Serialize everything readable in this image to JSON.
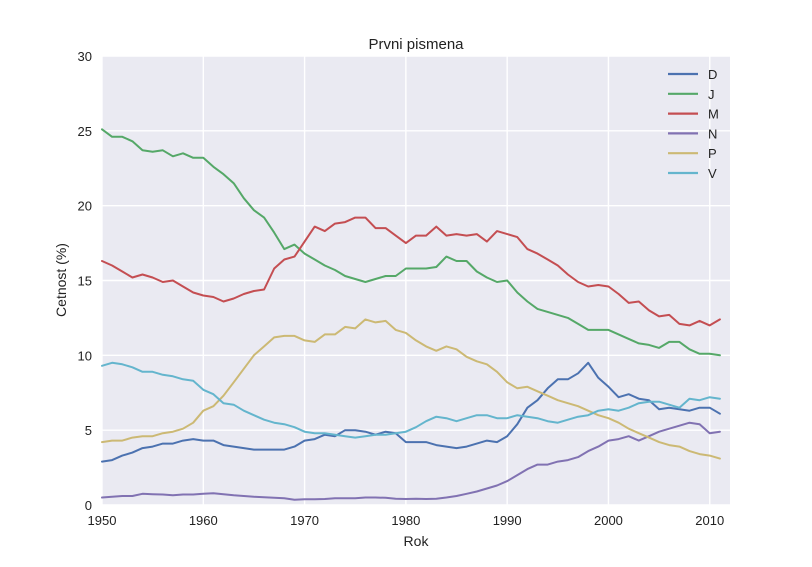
{
  "chart_data": {
    "type": "line",
    "title": "Prvni pismena",
    "xlabel": "Rok",
    "ylabel": "Cetnost (%)",
    "xlim": [
      1950,
      2012
    ],
    "ylim": [
      0,
      30
    ],
    "xticks": [
      1950,
      1960,
      1970,
      1980,
      1990,
      2000,
      2010
    ],
    "yticks": [
      0,
      5,
      10,
      15,
      20,
      25,
      30
    ],
    "grid": true,
    "legend_position": "top-right",
    "x": [
      1950,
      1951,
      1952,
      1953,
      1954,
      1955,
      1956,
      1957,
      1958,
      1959,
      1960,
      1961,
      1962,
      1963,
      1964,
      1965,
      1966,
      1967,
      1968,
      1969,
      1970,
      1971,
      1972,
      1973,
      1974,
      1975,
      1976,
      1977,
      1978,
      1979,
      1980,
      1981,
      1982,
      1983,
      1984,
      1985,
      1986,
      1987,
      1988,
      1989,
      1990,
      1991,
      1992,
      1993,
      1994,
      1995,
      1996,
      1997,
      1998,
      1999,
      2000,
      2001,
      2002,
      2003,
      2004,
      2005,
      2006,
      2007,
      2008,
      2009,
      2010,
      2011
    ],
    "series": [
      {
        "name": "D",
        "color": "#4c72b0",
        "values": [
          2.9,
          3.0,
          3.3,
          3.5,
          3.8,
          3.9,
          4.1,
          4.1,
          4.3,
          4.4,
          4.3,
          4.3,
          4.0,
          3.9,
          3.8,
          3.7,
          3.7,
          3.7,
          3.7,
          3.9,
          4.3,
          4.4,
          4.7,
          4.6,
          5.0,
          5.0,
          4.9,
          4.7,
          4.9,
          4.8,
          4.2,
          4.2,
          4.2,
          4.0,
          3.9,
          3.8,
          3.9,
          4.1,
          4.3,
          4.2,
          4.6,
          5.4,
          6.5,
          7.0,
          7.8,
          8.4,
          8.4,
          8.8,
          9.5,
          8.5,
          7.9,
          7.2,
          7.4,
          7.1,
          7.0,
          6.4,
          6.5,
          6.4,
          6.3,
          6.5,
          6.5,
          6.1
        ]
      },
      {
        "name": "J",
        "color": "#55a868",
        "values": [
          25.1,
          24.6,
          24.6,
          24.3,
          23.7,
          23.6,
          23.7,
          23.3,
          23.5,
          23.2,
          23.2,
          22.6,
          22.1,
          21.5,
          20.5,
          19.7,
          19.2,
          18.2,
          17.1,
          17.4,
          16.8,
          16.4,
          16.0,
          15.7,
          15.3,
          15.1,
          14.9,
          15.1,
          15.3,
          15.3,
          15.8,
          15.8,
          15.8,
          15.9,
          16.6,
          16.3,
          16.3,
          15.6,
          15.2,
          14.9,
          15.0,
          14.2,
          13.6,
          13.1,
          12.9,
          12.7,
          12.5,
          12.1,
          11.7,
          11.7,
          11.7,
          11.4,
          11.1,
          10.8,
          10.7,
          10.5,
          10.9,
          10.9,
          10.4,
          10.1,
          10.1,
          10.0
        ]
      },
      {
        "name": "M",
        "color": "#c44e52",
        "values": [
          16.3,
          16.0,
          15.6,
          15.2,
          15.4,
          15.2,
          14.9,
          15.0,
          14.6,
          14.2,
          14.0,
          13.9,
          13.6,
          13.8,
          14.1,
          14.3,
          14.4,
          15.8,
          16.4,
          16.6,
          17.6,
          18.6,
          18.3,
          18.8,
          18.9,
          19.2,
          19.2,
          18.5,
          18.5,
          18.0,
          17.5,
          18.0,
          18.0,
          18.6,
          18.0,
          18.1,
          18.0,
          18.1,
          17.6,
          18.3,
          18.1,
          17.9,
          17.1,
          16.8,
          16.4,
          16.0,
          15.4,
          14.9,
          14.6,
          14.7,
          14.6,
          14.1,
          13.5,
          13.6,
          13.0,
          12.6,
          12.7,
          12.1,
          12.0,
          12.3,
          12.0,
          12.4
        ]
      },
      {
        "name": "N",
        "color": "#8172b2",
        "values": [
          0.5,
          0.55,
          0.6,
          0.6,
          0.75,
          0.72,
          0.7,
          0.65,
          0.7,
          0.7,
          0.75,
          0.78,
          0.72,
          0.65,
          0.6,
          0.55,
          0.52,
          0.48,
          0.45,
          0.35,
          0.38,
          0.38,
          0.4,
          0.45,
          0.45,
          0.45,
          0.5,
          0.5,
          0.48,
          0.42,
          0.4,
          0.42,
          0.4,
          0.42,
          0.5,
          0.6,
          0.75,
          0.9,
          1.1,
          1.3,
          1.6,
          2.0,
          2.4,
          2.7,
          2.7,
          2.9,
          3.0,
          3.2,
          3.6,
          3.9,
          4.3,
          4.4,
          4.6,
          4.3,
          4.6,
          4.9,
          5.1,
          5.3,
          5.5,
          5.4,
          4.8,
          4.9
        ]
      },
      {
        "name": "P",
        "color": "#ccb974",
        "values": [
          4.2,
          4.3,
          4.3,
          4.5,
          4.6,
          4.6,
          4.8,
          4.9,
          5.1,
          5.5,
          6.3,
          6.6,
          7.3,
          8.2,
          9.1,
          10.0,
          10.6,
          11.2,
          11.3,
          11.3,
          11.0,
          10.9,
          11.4,
          11.4,
          11.9,
          11.8,
          12.4,
          12.2,
          12.3,
          11.7,
          11.5,
          11.0,
          10.6,
          10.3,
          10.6,
          10.4,
          9.9,
          9.6,
          9.4,
          8.9,
          8.2,
          7.8,
          7.9,
          7.6,
          7.3,
          7.0,
          6.8,
          6.6,
          6.3,
          6.0,
          5.8,
          5.5,
          5.1,
          4.8,
          4.5,
          4.2,
          4.0,
          3.9,
          3.6,
          3.4,
          3.3,
          3.1
        ]
      },
      {
        "name": "V",
        "color": "#64b5cd",
        "values": [
          9.3,
          9.5,
          9.4,
          9.2,
          8.9,
          8.9,
          8.7,
          8.6,
          8.4,
          8.3,
          7.7,
          7.4,
          6.8,
          6.7,
          6.3,
          6.0,
          5.7,
          5.5,
          5.4,
          5.2,
          4.9,
          4.8,
          4.8,
          4.7,
          4.6,
          4.5,
          4.6,
          4.7,
          4.7,
          4.8,
          4.9,
          5.2,
          5.6,
          5.9,
          5.8,
          5.6,
          5.8,
          6.0,
          6.0,
          5.8,
          5.8,
          6.0,
          5.9,
          5.8,
          5.6,
          5.5,
          5.7,
          5.9,
          6.0,
          6.3,
          6.4,
          6.3,
          6.5,
          6.8,
          6.9,
          6.9,
          6.7,
          6.5,
          7.1,
          7.0,
          7.2,
          7.1
        ]
      }
    ]
  }
}
